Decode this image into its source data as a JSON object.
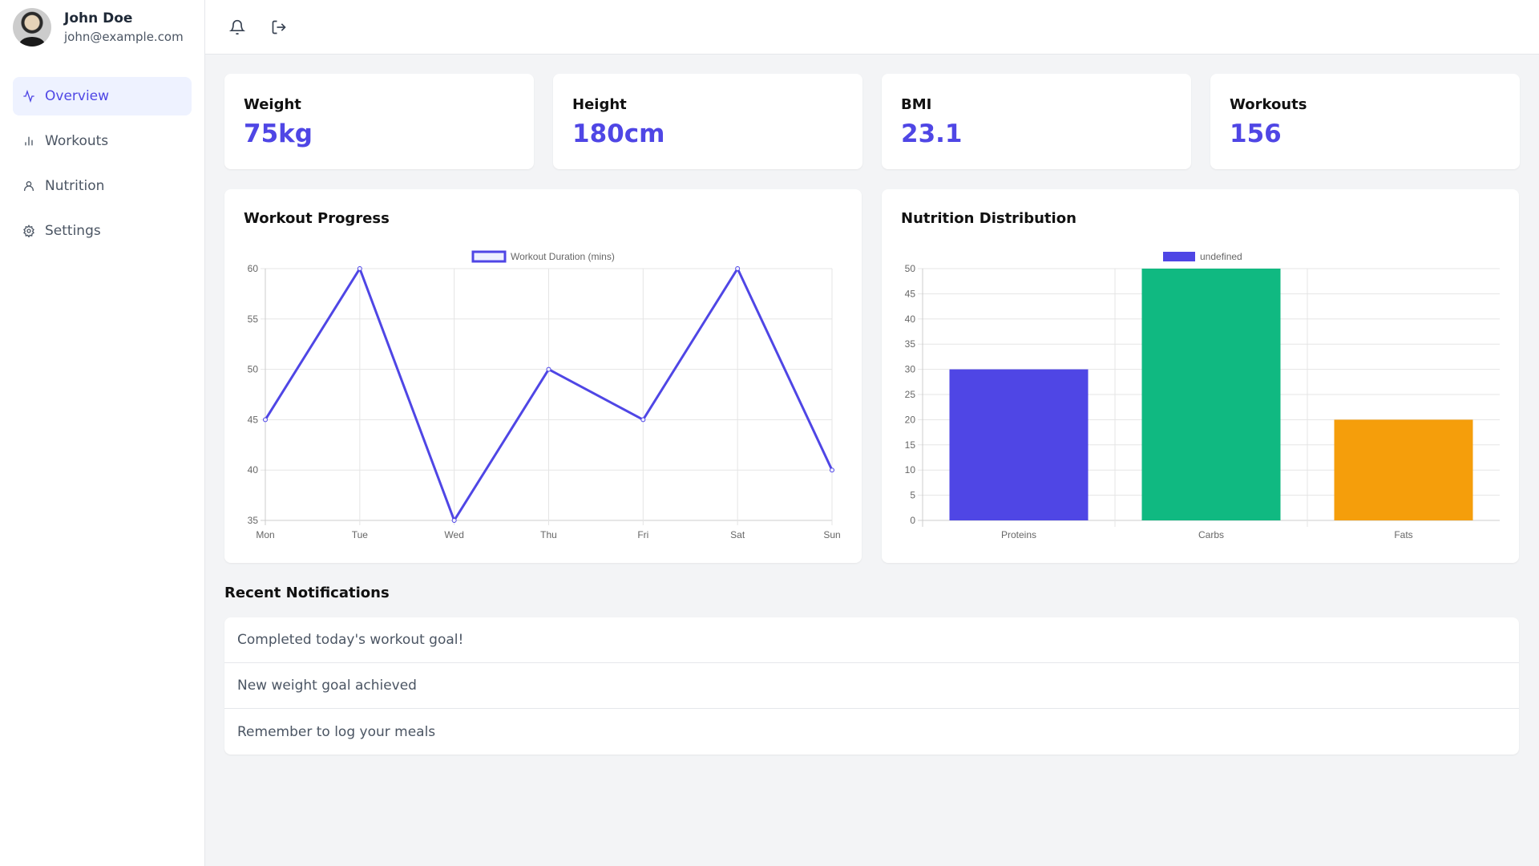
{
  "user": {
    "name": "John Doe",
    "email": "john@example.com"
  },
  "sidebar": {
    "items": [
      {
        "label": "Overview",
        "icon": "activity-icon",
        "active": true
      },
      {
        "label": "Workouts",
        "icon": "bar-chart-icon"
      },
      {
        "label": "Nutrition",
        "icon": "user-icon"
      },
      {
        "label": "Settings",
        "icon": "gear-icon"
      }
    ]
  },
  "header": {
    "icons": [
      "bell-icon",
      "logout-icon"
    ]
  },
  "stats": [
    {
      "label": "Weight",
      "value": "75kg"
    },
    {
      "label": "Height",
      "value": "180cm"
    },
    {
      "label": "BMI",
      "value": "23.1"
    },
    {
      "label": "Workouts",
      "value": "156"
    }
  ],
  "colors": {
    "accent": "#4f46e5",
    "green": "#10b981",
    "amber": "#f59e0b"
  },
  "chart_data": [
    {
      "type": "line",
      "title": "Workout Progress",
      "categories": [
        "Mon",
        "Tue",
        "Wed",
        "Thu",
        "Fri",
        "Sat",
        "Sun"
      ],
      "series": [
        {
          "name": "Workout Duration (mins)",
          "values": [
            45,
            60,
            35,
            50,
            45,
            60,
            40
          ],
          "color": "#4f46e5"
        }
      ],
      "ylim": [
        35,
        60
      ],
      "yticks": [
        35,
        40,
        45,
        50,
        55,
        60
      ],
      "grid": true,
      "legend": "top"
    },
    {
      "type": "bar",
      "title": "Nutrition Distribution",
      "categories": [
        "Proteins",
        "Carbs",
        "Fats"
      ],
      "series": [
        {
          "name": "undefined",
          "values": [
            30,
            50,
            20
          ],
          "colors": [
            "#4f46e5",
            "#10b981",
            "#f59e0b"
          ]
        }
      ],
      "ylim": [
        0,
        50
      ],
      "yticks": [
        0,
        5,
        10,
        15,
        20,
        25,
        30,
        35,
        40,
        45,
        50
      ],
      "grid": true,
      "legend": "top"
    }
  ],
  "notifications": {
    "title": "Recent Notifications",
    "items": [
      "Completed today's workout goal!",
      "New weight goal achieved",
      "Remember to log your meals"
    ]
  }
}
